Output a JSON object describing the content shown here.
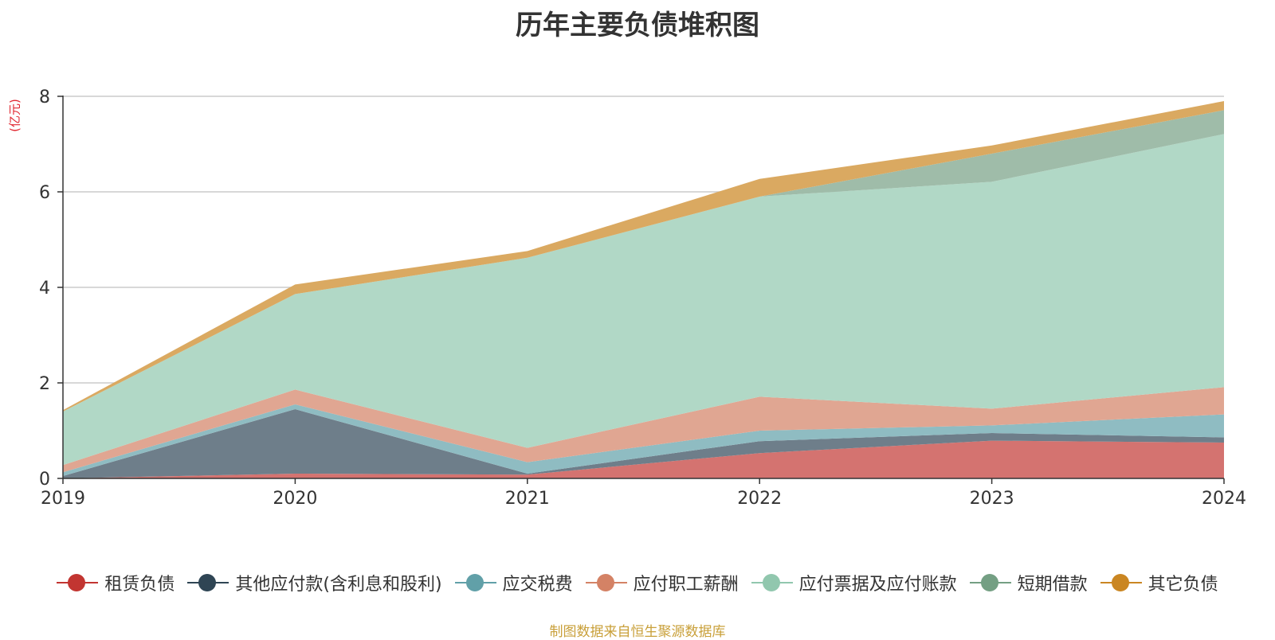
{
  "chart_data": {
    "type": "area",
    "stacked": true,
    "title": "历年主要负债堆积图",
    "ylabel": "(亿元)",
    "xlabel": "",
    "categories": [
      "2019",
      "2020",
      "2021",
      "2022",
      "2023",
      "2024"
    ],
    "ylim": [
      0,
      8
    ],
    "yticks": [
      0,
      2,
      4,
      6,
      8
    ],
    "grid": true,
    "legend_position": "bottom",
    "series": [
      {
        "name": "租赁负债",
        "color": "#c23531",
        "fill": "#d47370",
        "values": [
          0.0,
          0.1,
          0.08,
          0.53,
          0.79,
          0.75
        ]
      },
      {
        "name": "其他应付款(含利息和股利)",
        "color": "#2f4554",
        "fill": "#6e7e8a",
        "values": [
          0.05,
          1.35,
          0.02,
          0.25,
          0.16,
          0.11
        ]
      },
      {
        "name": "应交税费",
        "color": "#61a0a8",
        "fill": "#8fbcc2",
        "values": [
          0.08,
          0.1,
          0.24,
          0.22,
          0.16,
          0.48
        ]
      },
      {
        "name": "应付职工薪酬",
        "color": "#d48265",
        "fill": "#e0a692",
        "values": [
          0.15,
          0.31,
          0.3,
          0.71,
          0.35,
          0.57
        ]
      },
      {
        "name": "应付票据及应付账款",
        "color": "#91c7ae",
        "fill": "#b1d8c6",
        "values": [
          1.12,
          2.0,
          3.98,
          4.19,
          4.75,
          5.3
        ]
      },
      {
        "name": "短期借款",
        "color": "#749f83",
        "fill": "#9fbca9",
        "values": [
          0.0,
          0.0,
          0.0,
          0.0,
          0.59,
          0.5
        ]
      },
      {
        "name": "其它负债",
        "color": "#ca8622",
        "fill": "#daa961",
        "values": [
          0.03,
          0.2,
          0.14,
          0.37,
          0.17,
          0.19
        ]
      }
    ]
  },
  "source_text": "制图数据来自恒生聚源数据库",
  "colors": {
    "title": "#333333",
    "unit": "#e0262f",
    "source": "#c9a03a",
    "axis": "#333333",
    "grid": "#cccccc"
  }
}
